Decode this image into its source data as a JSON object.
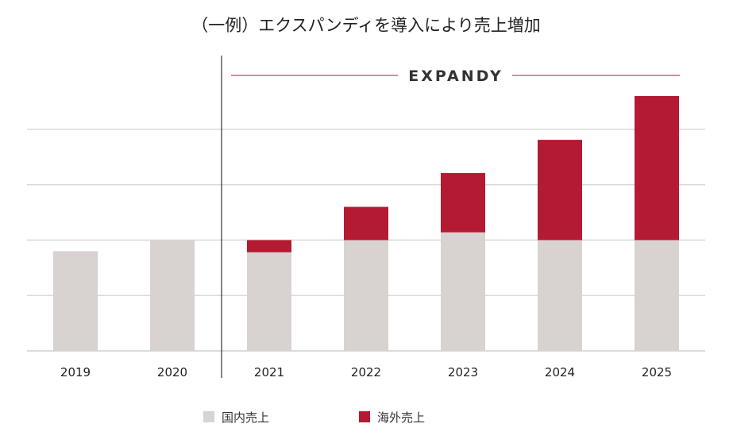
{
  "chart_data": {
    "type": "bar",
    "stacked": true,
    "title": "（一例）エクスパンディを導入により売上増加",
    "annotation": "EXPANDY",
    "xlabel": "",
    "ylabel": "",
    "ylim": [
      0,
      4.6
    ],
    "gridlines": [
      1,
      2,
      3,
      4
    ],
    "categories": [
      "2019",
      "2020",
      "2021",
      "2022",
      "2023",
      "2024",
      "2025"
    ],
    "series": [
      {
        "name": "国内売上",
        "color": "#d8d2d1",
        "values": [
          1.8,
          2.0,
          1.78,
          2.0,
          2.14,
          2.0,
          2.0
        ]
      },
      {
        "name": "海外売上",
        "color": "#b51a33",
        "values": [
          0,
          0,
          0.22,
          0.6,
          1.07,
          1.81,
          2.6
        ]
      }
    ],
    "legend_position": "bottom"
  }
}
